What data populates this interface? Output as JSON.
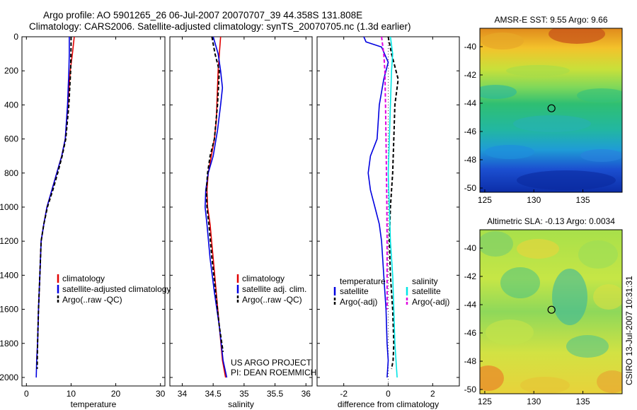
{
  "header": {
    "title_line1": "Argo profile: AO 5901265_26 06-Jul-2007 20070707_39 44.358S 131.808E",
    "title_line2": "Climatology: CARS2006. Satellite-adjusted climatology: synTS_20070705.nc (1.3d earlier)"
  },
  "side_label": "CSIRO 13-Jul-2007 10:31:31",
  "project_label": [
    "US ARGO PROJECT",
    "PI: DEAN ROEMMICH"
  ],
  "colors": {
    "climatology": "#e00000",
    "satellite": "#0000e0",
    "argo": "#000000",
    "cyan": "#00e5e5",
    "magenta": "#e000e0"
  },
  "chart_data": [
    {
      "type": "line",
      "xlabel": "temperature",
      "xlim": [
        -1,
        31
      ],
      "ylim": [
        2050,
        0
      ],
      "xticks": [
        0,
        10,
        20,
        30
      ],
      "yticks": [
        0,
        200,
        400,
        600,
        800,
        1000,
        1200,
        1400,
        1600,
        1800,
        2000
      ],
      "legend": [
        "climatology",
        "satellite-adjusted climatology",
        "Argo(..raw -QC)"
      ],
      "series": [
        {
          "name": "climatology",
          "color": "#e00000",
          "dash": false,
          "x": [
            10.7,
            10.3,
            9.8,
            9.3,
            8.7,
            7.9,
            6.8,
            5.7,
            4.6,
            3.9,
            3.3,
            3.0,
            2.7,
            2.5,
            2.3
          ],
          "y": [
            0,
            100,
            200,
            400,
            600,
            700,
            800,
            900,
            1000,
            1100,
            1200,
            1400,
            1600,
            1800,
            1900
          ]
        },
        {
          "name": "satellite-adjusted climatology",
          "color": "#0000e0",
          "dash": false,
          "x": [
            9.6,
            9.6,
            9.5,
            9.2,
            8.7,
            7.9,
            6.8,
            5.7,
            4.6,
            3.9,
            3.3,
            3.0,
            2.7,
            2.5,
            2.3,
            2.2
          ],
          "y": [
            0,
            100,
            200,
            400,
            600,
            700,
            800,
            900,
            1000,
            1100,
            1200,
            1400,
            1600,
            1800,
            1900,
            2000
          ]
        },
        {
          "name": "Argo(..raw -QC)",
          "color": "#000000",
          "dash": true,
          "x": [
            10.0,
            10.0,
            9.9,
            9.5,
            8.8,
            8.0,
            7.0,
            5.9,
            4.7,
            3.9,
            3.3,
            3.0,
            2.7,
            2.5,
            2.4
          ],
          "y": [
            0,
            50,
            200,
            400,
            600,
            700,
            800,
            900,
            1000,
            1100,
            1200,
            1400,
            1600,
            1800,
            1950
          ]
        }
      ]
    },
    {
      "type": "line",
      "xlabel": "salinity",
      "xlim": [
        33.8,
        36.1
      ],
      "ylim": [
        2050,
        0
      ],
      "xticks": [
        34,
        34.5,
        35,
        35.5,
        36
      ],
      "yticks": [
        0,
        200,
        400,
        600,
        800,
        1000,
        1200,
        1400,
        1600,
        1800,
        2000
      ],
      "legend": [
        "climatology",
        "satellite adj. clim.",
        "Argo(..raw -QC)"
      ],
      "series": [
        {
          "name": "climatology",
          "color": "#e00000",
          "dash": false,
          "x": [
            34.62,
            34.6,
            34.58,
            34.56,
            34.55,
            34.52,
            34.47,
            34.42,
            34.4,
            34.41,
            34.45,
            34.5,
            34.55,
            34.6,
            34.65,
            34.7
          ],
          "y": [
            0,
            100,
            200,
            400,
            500,
            600,
            700,
            800,
            900,
            1000,
            1100,
            1300,
            1500,
            1700,
            1900,
            2000
          ]
        },
        {
          "name": "satellite adj. clim.",
          "color": "#0000e0",
          "dash": false,
          "x": [
            34.5,
            34.58,
            34.62,
            34.65,
            34.62,
            34.57,
            34.5,
            34.42,
            34.38,
            34.37,
            34.4,
            34.45,
            34.52,
            34.6,
            34.66,
            34.72
          ],
          "y": [
            0,
            100,
            200,
            300,
            400,
            550,
            700,
            800,
            900,
            1000,
            1100,
            1300,
            1500,
            1700,
            1900,
            2000
          ]
        },
        {
          "name": "Argo(..raw -QC)",
          "color": "#000000",
          "dash": true,
          "x": [
            34.48,
            34.53,
            34.6,
            34.57,
            34.52,
            34.45,
            34.41,
            34.39,
            34.4,
            34.43,
            34.48,
            34.54,
            34.6,
            34.66
          ],
          "y": [
            0,
            100,
            200,
            400,
            600,
            700,
            800,
            900,
            1000,
            1100,
            1300,
            1500,
            1700,
            1850
          ]
        }
      ]
    },
    {
      "type": "line",
      "xlabel": "difference from climatology",
      "xlim": [
        -3.2,
        3.2
      ],
      "ylim": [
        2050,
        0
      ],
      "xticks": [
        -2,
        0,
        2
      ],
      "yticks": [
        0,
        200,
        400,
        600,
        800,
        1000,
        1200,
        1400,
        1600,
        1800,
        2000
      ],
      "legend_headers": [
        "temperature",
        "salinity"
      ],
      "legend": [
        "satellite",
        "Argo(-adj)",
        "satellite",
        "Argo(-adj)"
      ],
      "series": [
        {
          "name": "satellite",
          "color": "#0000e0",
          "dash": false,
          "x": [
            -1.1,
            -1.0,
            -0.3,
            0.0,
            -0.2,
            -0.4,
            -0.5,
            -0.8,
            -0.9,
            -0.8,
            -0.6,
            -0.4,
            -0.3,
            -0.2,
            -0.1,
            -0.05,
            0.0,
            -0.05
          ],
          "y": [
            0,
            30,
            60,
            150,
            250,
            400,
            600,
            700,
            800,
            900,
            1000,
            1100,
            1200,
            1400,
            1600,
            1800,
            1900,
            2000
          ]
        },
        {
          "name": "Argo(-adj)",
          "color": "#000000",
          "dash": true,
          "x": [
            0.0,
            0.15,
            0.45,
            0.3,
            0.25,
            0.2,
            0.1,
            0.05,
            0.1,
            0.2,
            0.25,
            0.22,
            0.15
          ],
          "y": [
            0,
            100,
            250,
            400,
            600,
            800,
            1000,
            1200,
            1400,
            1600,
            1800,
            1900,
            1950
          ]
        },
        {
          "name": "satellite",
          "color": "#00e5e5",
          "dash": false,
          "x": [
            0.1,
            0.2,
            0.15,
            0.1,
            0.05,
            0.0,
            0.05,
            0.1,
            0.2,
            0.25,
            0.3,
            0.35,
            0.4
          ],
          "y": [
            0,
            100,
            200,
            400,
            600,
            800,
            1000,
            1200,
            1400,
            1600,
            1800,
            1900,
            2000
          ]
        },
        {
          "name": "Argo(-adj)",
          "color": "#e000e0",
          "dash": true,
          "x": [
            -0.3,
            -0.2,
            -0.15,
            -0.12,
            -0.1,
            -0.08,
            -0.06,
            -0.05,
            -0.05,
            -0.05
          ],
          "y": [
            0,
            100,
            200,
            400,
            600,
            800,
            1000,
            1200,
            1400,
            1600
          ]
        }
      ]
    },
    {
      "type": "heatmap",
      "title": "AMSR-E SST: 9.55 Argo: 9.66",
      "xlim": [
        124.5,
        139
      ],
      "ylim": [
        -50.3,
        -38.7
      ],
      "xticks": [
        125,
        130,
        135
      ],
      "yticks": [
        -40,
        -42,
        -44,
        -46,
        -48,
        -50
      ],
      "marker": {
        "x": 131.8,
        "y": -44.36
      }
    },
    {
      "type": "heatmap",
      "title": "Altimetric SLA: -0.13 Argo: 0.0034",
      "xlim": [
        124.5,
        139
      ],
      "ylim": [
        -50.3,
        -38.7
      ],
      "xticks": [
        125,
        130,
        135
      ],
      "yticks": [
        -40,
        -42,
        -44,
        -46,
        -48,
        -50
      ],
      "marker": {
        "x": 131.8,
        "y": -44.36
      }
    }
  ]
}
